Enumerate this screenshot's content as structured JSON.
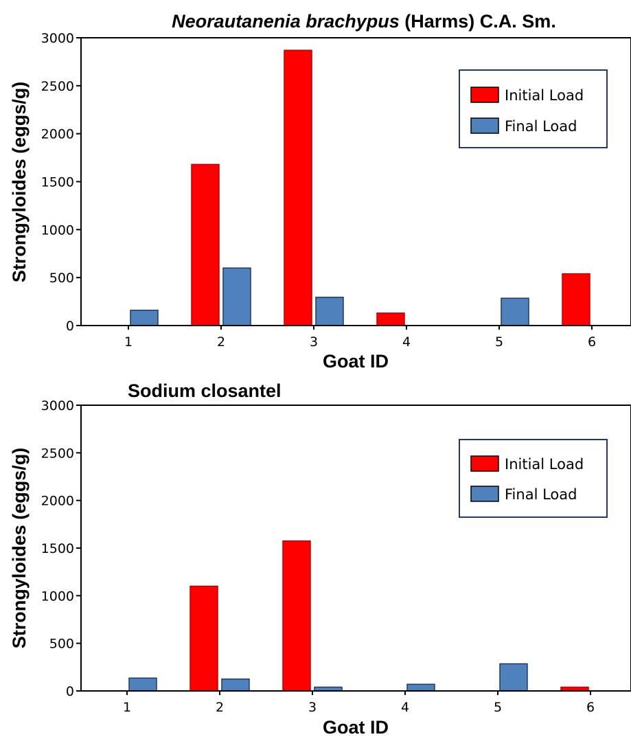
{
  "chart_data": [
    {
      "type": "bar",
      "title_italic": "Neorautanenia brachypus",
      "title_rest": " (Harms) C.A. Sm.",
      "xlabel": "Goat ID",
      "ylabel": "Strongyloides (eggs/g)",
      "categories": [
        "1",
        "2",
        "3",
        "4",
        "5",
        "6"
      ],
      "ylim": [
        0,
        3000
      ],
      "yticks": [
        0,
        500,
        1000,
        1500,
        2000,
        2500,
        3000
      ],
      "grid": false,
      "legend_position": "top-right",
      "series": [
        {
          "name": "Initial Load",
          "color": "#ff0000",
          "values": [
            0,
            1680,
            2870,
            130,
            0,
            540
          ]
        },
        {
          "name": "Final Load",
          "color": "#4f81bd",
          "values": [
            160,
            600,
            295,
            0,
            285,
            0
          ]
        }
      ]
    },
    {
      "type": "bar",
      "title_italic": "",
      "title_rest": "Sodium closantel",
      "xlabel": "Goat ID",
      "ylabel": "Strongyloides (eggs/g)",
      "categories": [
        "1",
        "2",
        "3",
        "4",
        "5",
        "6"
      ],
      "ylim": [
        0,
        3000
      ],
      "yticks": [
        0,
        500,
        1000,
        1500,
        2000,
        2500,
        3000
      ],
      "grid": false,
      "legend_position": "top-right",
      "series": [
        {
          "name": "Initial Load",
          "color": "#ff0000",
          "values": [
            0,
            1100,
            1575,
            0,
            0,
            40
          ]
        },
        {
          "name": "Final Load",
          "color": "#4f81bd",
          "values": [
            135,
            125,
            40,
            70,
            285,
            0
          ]
        }
      ]
    }
  ]
}
